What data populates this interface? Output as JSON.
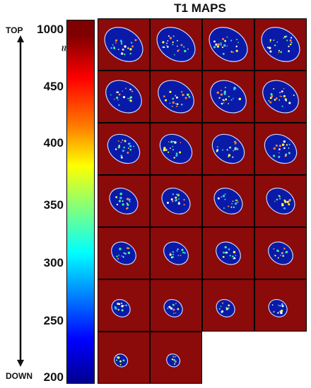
{
  "title": "T1 MAPS",
  "axis": {
    "top_label": "TOP",
    "bottom_label": "DOWN",
    "break_mark": "≈"
  },
  "colorbar": {
    "ticks": [
      "1000",
      "450",
      "400",
      "350",
      "300",
      "250",
      "200"
    ],
    "colors": [
      "#7f0000",
      "#ff0000",
      "#ffff00",
      "#00ffff",
      "#0000ff",
      "#00008f"
    ]
  },
  "grid": {
    "rows": 7,
    "cols": 4,
    "slices_per_row": [
      4,
      4,
      4,
      4,
      4,
      4,
      2
    ],
    "background_color": "#8b0a0a",
    "tissue_color": "#0a1aa8"
  }
}
